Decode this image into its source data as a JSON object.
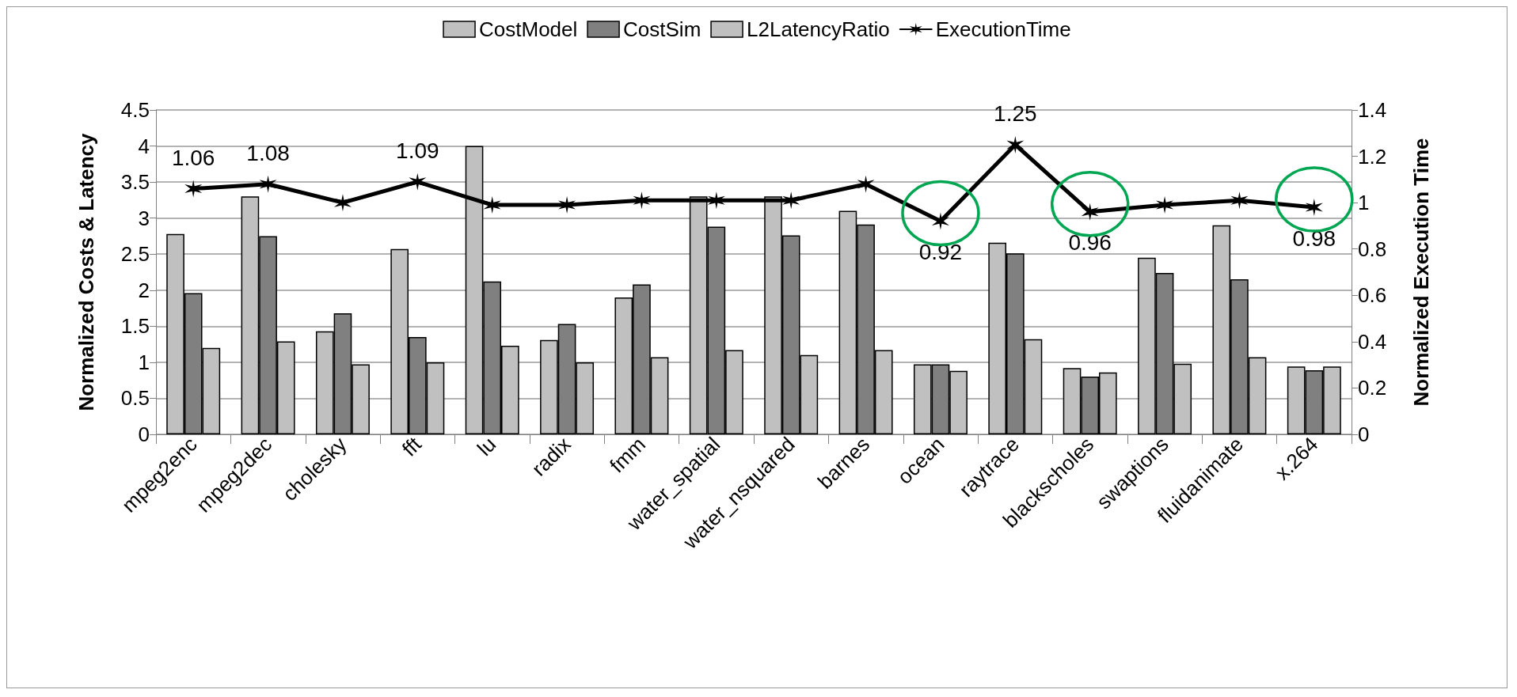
{
  "chart_data": {
    "type": "bar",
    "categories": [
      "mpeg2enc",
      "mpeg2dec",
      "cholesky",
      "fft",
      "lu",
      "radix",
      "fmm",
      "water_spatial",
      "water_nsquared",
      "barnes",
      "ocean",
      "raytrace",
      "blackscholes",
      "swaptions",
      "fluidanimate",
      "x.264"
    ],
    "ylabel": "Normalized Costs & Latency",
    "y2label": "Normalized Execution Time",
    "ylim": [
      0,
      4.5
    ],
    "yticks": [
      0,
      0.5,
      1,
      1.5,
      2,
      2.5,
      3,
      3.5,
      4,
      4.5
    ],
    "y2lim": [
      0,
      1.4
    ],
    "y2ticks": [
      0,
      0.2,
      0.4,
      0.6,
      0.8,
      1,
      1.2,
      1.4
    ],
    "grid": "y",
    "legend": "top",
    "marker": "cross",
    "line_style": "solid",
    "series": [
      {
        "name": "CostModel",
        "color": "#c0c0c0",
        "values": [
          2.78,
          3.3,
          1.43,
          2.57,
          4.0,
          1.31,
          1.9,
          3.3,
          3.3,
          3.1,
          0.97,
          2.66,
          0.92,
          2.45,
          2.9,
          0.94
        ]
      },
      {
        "name": "CostSim",
        "color": "#808080",
        "values": [
          1.96,
          2.75,
          1.68,
          1.35,
          2.12,
          1.53,
          2.08,
          2.88,
          2.76,
          2.91,
          0.97,
          2.51,
          0.8,
          2.24,
          2.15,
          0.89
        ]
      },
      {
        "name": "L2LatencyRatio",
        "color": "#c0c0c0",
        "values": [
          1.2,
          1.29,
          0.97,
          1.0,
          1.23,
          1.0,
          1.07,
          1.17,
          1.1,
          1.17,
          0.88,
          1.32,
          0.86,
          0.98,
          1.07,
          0.94
        ]
      },
      {
        "name": "ExecutionTime",
        "type": "line",
        "axis": "y2",
        "color": "#000000",
        "values": [
          1.06,
          1.08,
          1.0,
          1.09,
          0.99,
          0.99,
          1.01,
          1.01,
          1.01,
          1.08,
          0.92,
          1.25,
          0.96,
          0.99,
          1.01,
          0.98
        ],
        "value_labels": [
          "1.06",
          "1.08",
          null,
          "1.09",
          null,
          null,
          null,
          null,
          null,
          null,
          "0.92",
          "1.25",
          "0.96",
          null,
          null,
          "0.98"
        ]
      }
    ]
  }
}
